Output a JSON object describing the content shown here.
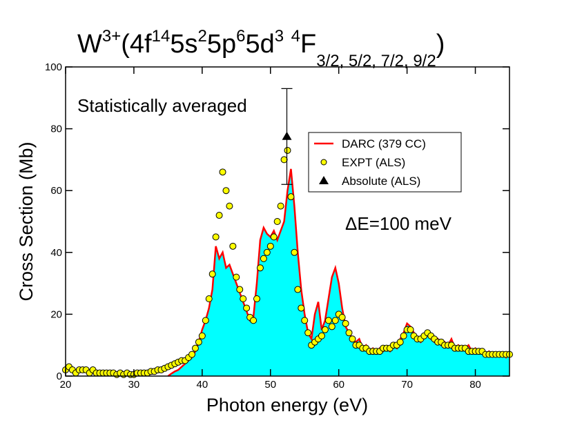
{
  "chart_data": {
    "type": "line",
    "title": [
      "W",
      "3+",
      "(4f",
      "14",
      "5s",
      "2",
      "5p",
      "6",
      "5d",
      "3",
      " ",
      "4",
      "F",
      "3/2, 5/2, 7/2, 9/2",
      ")"
    ],
    "title_script": [
      "base",
      "sup",
      "base",
      "sup",
      "base",
      "sup",
      "base",
      "sup",
      "base",
      "sup",
      "base",
      "sup",
      "base",
      "sub",
      "base"
    ],
    "annotations": [
      "Statistically averaged",
      "ΔE=100 meV"
    ],
    "x_label": "Photon energy (eV)",
    "y_label": "Cross Section (Mb)",
    "xlim": [
      20,
      85
    ],
    "xticks": [
      20,
      30,
      40,
      50,
      60,
      70,
      80
    ],
    "ylim": [
      0,
      100
    ],
    "yticks": [
      0,
      20,
      40,
      60,
      80,
      100
    ],
    "legend": "upper right",
    "series": [
      {
        "name": "DARC (379 CC)",
        "type": "line",
        "color": "#ff0000",
        "fill": "#00ffff",
        "x": [
          35,
          35.5,
          36,
          36.5,
          37,
          37.5,
          38,
          38.5,
          39,
          39.5,
          40,
          40.5,
          41,
          41.5,
          42,
          42.5,
          43,
          43.5,
          44,
          44.5,
          45,
          45.5,
          46,
          46.5,
          47,
          47.5,
          48,
          48.5,
          49,
          49.5,
          50,
          50.5,
          51,
          51.5,
          52,
          52.5,
          53,
          53.5,
          54,
          54.5,
          55,
          55.5,
          56,
          56.5,
          57,
          57.5,
          58,
          58.5,
          59,
          59.5,
          60,
          60.5,
          61,
          61.5,
          62,
          62.5,
          63,
          63.5,
          64,
          64.5,
          65,
          65.5,
          66,
          66.5,
          67,
          67.5,
          68,
          68.5,
          69,
          69.5,
          70,
          70.5,
          71,
          71.5,
          72,
          72.5,
          73,
          73.5,
          74,
          74.5,
          75,
          75.5,
          76,
          76.5,
          77,
          77.5,
          78,
          78.5,
          79,
          79.5,
          80,
          80.5,
          81,
          81.5,
          82,
          82.5,
          83,
          83.5,
          84,
          84.5,
          85
        ],
        "values": [
          0,
          0.8,
          1.5,
          2,
          3,
          4,
          5,
          6,
          8,
          11,
          15,
          18,
          22,
          28,
          42,
          38,
          40,
          35,
          36,
          33,
          30,
          27,
          24,
          21,
          18,
          19,
          30,
          44,
          48,
          46,
          45,
          47,
          44,
          47,
          50,
          60,
          67,
          55,
          40,
          28,
          20,
          14,
          12,
          20,
          24,
          15,
          18,
          25,
          32,
          35,
          30,
          22,
          16,
          14,
          12,
          11,
          12,
          9,
          10,
          8,
          9,
          8,
          9,
          8,
          9,
          8,
          10,
          9,
          12,
          14,
          17,
          16,
          14,
          12,
          11,
          13,
          14,
          12,
          11,
          12,
          10,
          11,
          10,
          12,
          9,
          10,
          9,
          9,
          10,
          8,
          9,
          8,
          8,
          7,
          8,
          7,
          7,
          7,
          7,
          6,
          7
        ]
      },
      {
        "name": "EXPT (ALS)",
        "type": "scatter",
        "color": "#ffff00",
        "x": [
          20,
          20.5,
          21,
          21.5,
          22,
          22.5,
          23,
          23.5,
          24,
          24.5,
          25,
          25.5,
          26,
          26.5,
          27,
          27.5,
          28,
          28.5,
          29,
          29.5,
          30,
          30.5,
          31,
          31.5,
          32,
          32.5,
          33,
          33.5,
          34,
          34.5,
          35,
          35.5,
          36,
          36.5,
          37,
          37.5,
          38,
          38.5,
          39,
          39.5,
          40,
          40.5,
          41,
          41.5,
          42,
          42.5,
          43,
          43.5,
          44,
          44.5,
          45,
          45.5,
          46,
          46.5,
          47,
          47.5,
          48,
          48.5,
          49,
          49.5,
          50,
          50.5,
          51,
          51.5,
          52,
          52.5,
          53,
          53.5,
          54,
          54.5,
          55,
          55.5,
          56,
          56.5,
          57,
          57.5,
          58,
          58.5,
          59,
          59.5,
          60,
          60.5,
          61,
          61.5,
          62,
          62.5,
          63,
          63.5,
          64,
          64.5,
          65,
          65.5,
          66,
          66.5,
          67,
          67.5,
          68,
          68.5,
          69,
          69.5,
          70,
          70.5,
          71,
          71.5,
          72,
          72.5,
          73,
          73.5,
          74,
          74.5,
          75,
          75.5,
          76,
          76.5,
          77,
          77.5,
          78,
          78.5,
          79,
          79.5,
          80,
          80.5,
          81,
          81.5,
          82,
          82.5,
          83,
          83.5,
          84,
          84.5,
          85
        ],
        "values": [
          2,
          3,
          2,
          1,
          2,
          2,
          2,
          1,
          2,
          1,
          1,
          1,
          1,
          1,
          1,
          0.5,
          1,
          0.5,
          1,
          0.5,
          0.5,
          1,
          1,
          1,
          1,
          1.5,
          1.5,
          2,
          2,
          2.5,
          3,
          3.5,
          4,
          4.5,
          5,
          5,
          6,
          7,
          9,
          11,
          13,
          18,
          25,
          33,
          45,
          52,
          66,
          60,
          55,
          42,
          32,
          28,
          25,
          22,
          19,
          18,
          25,
          35,
          38,
          40,
          42,
          45,
          50,
          55,
          70,
          73,
          58,
          40,
          28,
          22,
          18,
          14,
          10,
          11,
          12,
          13,
          15,
          18,
          16,
          18,
          20,
          19,
          17,
          14,
          12,
          10,
          10,
          9,
          9,
          8,
          8,
          8,
          8,
          9,
          9,
          9,
          10,
          10,
          11,
          13,
          15,
          15,
          13,
          12,
          12,
          13,
          14,
          13,
          12,
          11,
          11,
          10,
          10,
          10,
          9,
          9,
          9,
          9,
          8,
          8,
          8,
          8,
          8,
          7,
          7,
          7,
          7,
          7,
          7,
          7,
          7
        ]
      },
      {
        "name": "Absolute (ALS)",
        "type": "errorbar",
        "color": "#000000",
        "x": [
          52.4
        ],
        "values": [
          77.5
        ],
        "errors": [
          15.5
        ]
      }
    ]
  }
}
